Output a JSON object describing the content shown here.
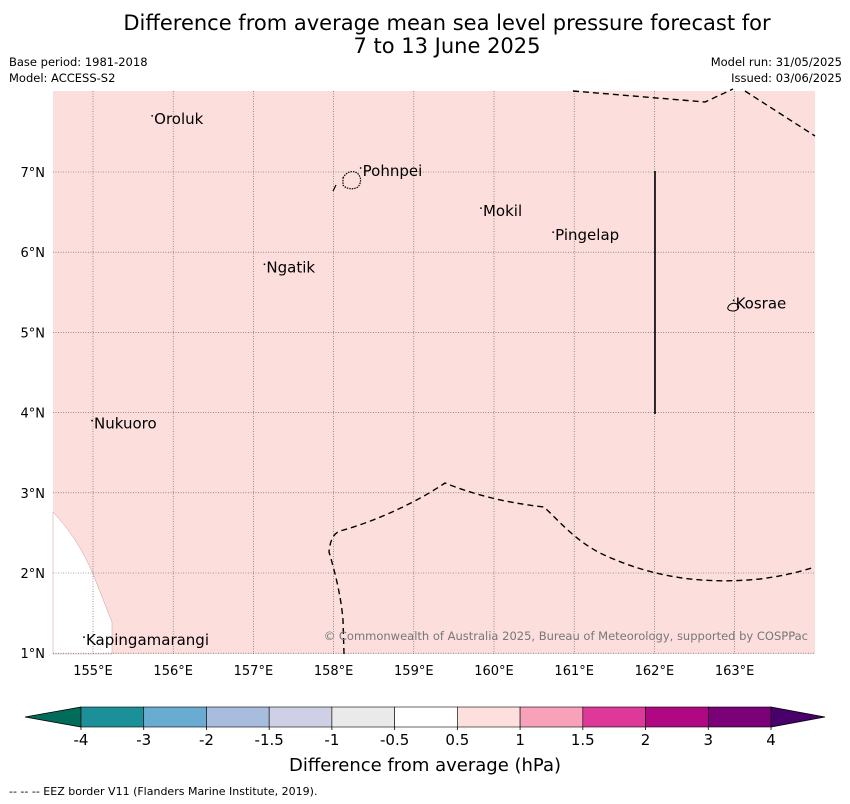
{
  "title_line1": "Difference from average mean sea level pressure forecast for",
  "title_line2": "7 to 13 June 2025",
  "base_period": "Base period: 1981-2018",
  "model": "Model: ACCESS-S2",
  "model_run": "Model run: 31/05/2025",
  "issued": "Issued: 03/06/2025",
  "copyright": "© Commonwealth of Australia 2025, Bureau of Meteorology, supported by COSPPac",
  "colorbar_label": "Difference from average (hPa)",
  "footnote": "--  --  -- EEZ border V11 (Flanders Marine Institute, 2019).",
  "map": {
    "lon_ticks": [
      "155°E",
      "156°E",
      "157°E",
      "158°E",
      "159°E",
      "160°E",
      "161°E",
      "162°E",
      "163°E"
    ],
    "lat_ticks": [
      "7°N",
      "6°N",
      "5°N",
      "4°N",
      "3°N",
      "2°N",
      "1°N"
    ],
    "background_color": "#fcdfdd",
    "places": [
      {
        "name": "Oroluk",
        "lon": 155.75,
        "lat": 7.6
      },
      {
        "name": "Pohnpei",
        "lon": 158.35,
        "lat": 6.95
      },
      {
        "name": "Mokil",
        "lon": 159.85,
        "lat": 6.45
      },
      {
        "name": "Pingelap",
        "lon": 160.75,
        "lat": 6.15
      },
      {
        "name": "Ngatik",
        "lon": 157.15,
        "lat": 5.75
      },
      {
        "name": "Kosrae",
        "lon": 163.0,
        "lat": 5.3
      },
      {
        "name": "Nukuoro",
        "lon": 155.0,
        "lat": 3.8
      },
      {
        "name": "Kapingamarangi",
        "lon": 154.9,
        "lat": 1.1
      }
    ]
  },
  "colorbar": {
    "tick_labels": [
      "-4",
      "-3",
      "-2",
      "-1.5",
      "-1",
      "-0.5",
      "0.5",
      "1",
      "1.5",
      "2",
      "3",
      "4"
    ],
    "colors": [
      "#1b9099",
      "#6aabd2",
      "#a8bcde",
      "#cfd0e6",
      "#eaeaea",
      "#ffffff",
      "#fde0dd",
      "#f7a1ba",
      "#de3898",
      "#b00882",
      "#7a0177"
    ],
    "under_color": "#016c59",
    "over_color": "#49006a"
  }
}
